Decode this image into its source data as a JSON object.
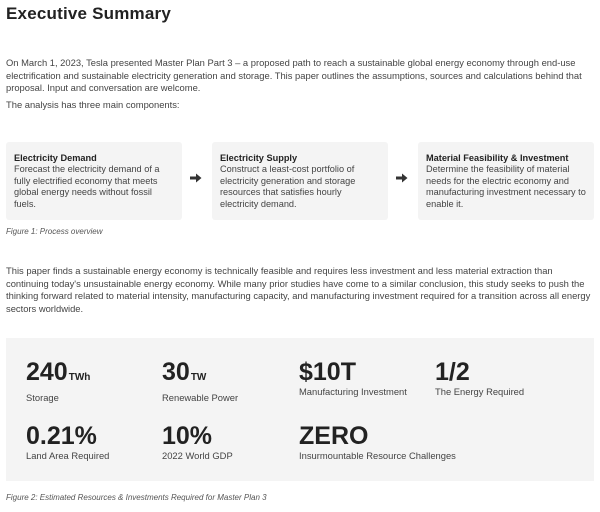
{
  "title": "Executive Summary",
  "paragraphs": {
    "intro": "On March 1, 2023, Tesla presented Master Plan Part 3 – a proposed path to reach a sustainable global energy economy through end-use electrification and sustainable electricity generation and storage. This paper outlines the assumptions, sources and calculations behind that proposal. Input and conversation are welcome.",
    "components": "The analysis has three main components:",
    "findings": "This paper finds a sustainable energy economy is technically feasible and requires less investment and less material extraction than continuing today's unsustainable energy economy. While many prior studies have come to a similar conclusion, this study seeks to push the thinking forward related to material intensity, manufacturing capacity, and manufacturing investment required for a transition across all energy sectors worldwide."
  },
  "process": [
    {
      "title": "Electricity Demand",
      "text": "Forecast the electricity demand of a fully electrified economy that meets global energy needs without fossil fuels."
    },
    {
      "title": "Electricity Supply",
      "text": "Construct a least-cost portfolio of electricity generation and storage resources that satisfies hourly electricity demand."
    },
    {
      "title": "Material Feasibility & Investment",
      "text": "Determine the feasibility of material needs for the electric economy and manufacturing investment necessary to enable it."
    }
  ],
  "captions": {
    "figure1": "Figure 1: Process overview",
    "figure2": "Figure 2: Estimated Resources & Investments Required for Master Plan 3"
  },
  "stats": [
    {
      "value": "240",
      "unit": "TWh",
      "label": "Storage"
    },
    {
      "value": "30",
      "unit": "TW",
      "label": "Renewable Power"
    },
    {
      "value": "$10T",
      "unit": "",
      "label": "Manufacturing Investment"
    },
    {
      "value": "1/2",
      "unit": "",
      "label": "The Energy Required"
    },
    {
      "value": "0.21%",
      "unit": "",
      "label": "Land Area Required"
    },
    {
      "value": "10%",
      "unit": "",
      "label": "2022 World GDP"
    },
    {
      "value": "ZERO",
      "unit": "",
      "label": "Insurmountable Resource Challenges"
    }
  ],
  "colors": {
    "panel": "#f4f4f4",
    "text": "#222222"
  }
}
